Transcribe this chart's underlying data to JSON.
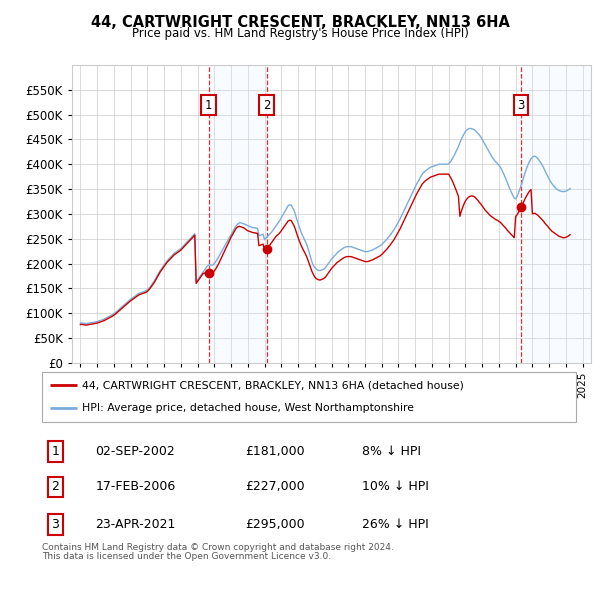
{
  "title": "44, CARTWRIGHT CRESCENT, BRACKLEY, NN13 6HA",
  "subtitle": "Price paid vs. HM Land Registry's House Price Index (HPI)",
  "legend_label_red": "44, CARTWRIGHT CRESCENT, BRACKLEY, NN13 6HA (detached house)",
  "legend_label_blue": "HPI: Average price, detached house, West Northamptonshire",
  "footer1": "Contains HM Land Registry data © Crown copyright and database right 2024.",
  "footer2": "This data is licensed under the Open Government Licence v3.0.",
  "transactions": [
    {
      "num": 1,
      "date": "02-SEP-2002",
      "price": "£181,000",
      "pct": "8% ↓ HPI",
      "x_year": 2002.67
    },
    {
      "num": 2,
      "date": "17-FEB-2006",
      "price": "£227,000",
      "pct": "10% ↓ HPI",
      "x_year": 2006.12
    },
    {
      "num": 3,
      "date": "23-APR-2021",
      "price": "£295,000",
      "pct": "26% ↓ HPI",
      "x_year": 2021.31
    }
  ],
  "red_color": "#cc0000",
  "blue_color": "#7aaddc",
  "shading_color": "#ddeeff",
  "grid_color": "#cccccc",
  "background_chart": "#ffffff",
  "ylim": [
    0,
    600000
  ],
  "yticks": [
    0,
    50000,
    100000,
    150000,
    200000,
    250000,
    300000,
    350000,
    400000,
    450000,
    500000,
    550000
  ],
  "xmin": 1994.5,
  "xmax": 2025.5,
  "years": [
    1995.0,
    1995.083,
    1995.167,
    1995.25,
    1995.333,
    1995.417,
    1995.5,
    1995.583,
    1995.667,
    1995.75,
    1995.833,
    1995.917,
    1996.0,
    1996.083,
    1996.167,
    1996.25,
    1996.333,
    1996.417,
    1996.5,
    1996.583,
    1996.667,
    1996.75,
    1996.833,
    1996.917,
    1997.0,
    1997.083,
    1997.167,
    1997.25,
    1997.333,
    1997.417,
    1997.5,
    1997.583,
    1997.667,
    1997.75,
    1997.833,
    1997.917,
    1998.0,
    1998.083,
    1998.167,
    1998.25,
    1998.333,
    1998.417,
    1998.5,
    1998.583,
    1998.667,
    1998.75,
    1998.833,
    1998.917,
    1999.0,
    1999.083,
    1999.167,
    1999.25,
    1999.333,
    1999.417,
    1999.5,
    1999.583,
    1999.667,
    1999.75,
    1999.833,
    1999.917,
    2000.0,
    2000.083,
    2000.167,
    2000.25,
    2000.333,
    2000.417,
    2000.5,
    2000.583,
    2000.667,
    2000.75,
    2000.833,
    2000.917,
    2001.0,
    2001.083,
    2001.167,
    2001.25,
    2001.333,
    2001.417,
    2001.5,
    2001.583,
    2001.667,
    2001.75,
    2001.833,
    2001.917,
    2002.0,
    2002.083,
    2002.167,
    2002.25,
    2002.333,
    2002.417,
    2002.5,
    2002.583,
    2002.667,
    2002.75,
    2002.833,
    2002.917,
    2003.0,
    2003.083,
    2003.167,
    2003.25,
    2003.333,
    2003.417,
    2003.5,
    2003.583,
    2003.667,
    2003.75,
    2003.833,
    2003.917,
    2004.0,
    2004.083,
    2004.167,
    2004.25,
    2004.333,
    2004.417,
    2004.5,
    2004.583,
    2004.667,
    2004.75,
    2004.833,
    2004.917,
    2005.0,
    2005.083,
    2005.167,
    2005.25,
    2005.333,
    2005.417,
    2005.5,
    2005.583,
    2005.667,
    2005.75,
    2005.833,
    2005.917,
    2006.0,
    2006.083,
    2006.167,
    2006.25,
    2006.333,
    2006.417,
    2006.5,
    2006.583,
    2006.667,
    2006.75,
    2006.833,
    2006.917,
    2007.0,
    2007.083,
    2007.167,
    2007.25,
    2007.333,
    2007.417,
    2007.5,
    2007.583,
    2007.667,
    2007.75,
    2007.833,
    2007.917,
    2008.0,
    2008.083,
    2008.167,
    2008.25,
    2008.333,
    2008.417,
    2008.5,
    2008.583,
    2008.667,
    2008.75,
    2008.833,
    2008.917,
    2009.0,
    2009.083,
    2009.167,
    2009.25,
    2009.333,
    2009.417,
    2009.5,
    2009.583,
    2009.667,
    2009.75,
    2009.833,
    2009.917,
    2010.0,
    2010.083,
    2010.167,
    2010.25,
    2010.333,
    2010.417,
    2010.5,
    2010.583,
    2010.667,
    2010.75,
    2010.833,
    2010.917,
    2011.0,
    2011.083,
    2011.167,
    2011.25,
    2011.333,
    2011.417,
    2011.5,
    2011.583,
    2011.667,
    2011.75,
    2011.833,
    2011.917,
    2012.0,
    2012.083,
    2012.167,
    2012.25,
    2012.333,
    2012.417,
    2012.5,
    2012.583,
    2012.667,
    2012.75,
    2012.833,
    2012.917,
    2013.0,
    2013.083,
    2013.167,
    2013.25,
    2013.333,
    2013.417,
    2013.5,
    2013.583,
    2013.667,
    2013.75,
    2013.833,
    2013.917,
    2014.0,
    2014.083,
    2014.167,
    2014.25,
    2014.333,
    2014.417,
    2014.5,
    2014.583,
    2014.667,
    2014.75,
    2014.833,
    2014.917,
    2015.0,
    2015.083,
    2015.167,
    2015.25,
    2015.333,
    2015.417,
    2015.5,
    2015.583,
    2015.667,
    2015.75,
    2015.833,
    2015.917,
    2016.0,
    2016.083,
    2016.167,
    2016.25,
    2016.333,
    2016.417,
    2016.5,
    2016.583,
    2016.667,
    2016.75,
    2016.833,
    2016.917,
    2017.0,
    2017.083,
    2017.167,
    2017.25,
    2017.333,
    2017.417,
    2017.5,
    2017.583,
    2017.667,
    2017.75,
    2017.833,
    2017.917,
    2018.0,
    2018.083,
    2018.167,
    2018.25,
    2018.333,
    2018.417,
    2018.5,
    2018.583,
    2018.667,
    2018.75,
    2018.833,
    2018.917,
    2019.0,
    2019.083,
    2019.167,
    2019.25,
    2019.333,
    2019.417,
    2019.5,
    2019.583,
    2019.667,
    2019.75,
    2019.833,
    2019.917,
    2020.0,
    2020.083,
    2020.167,
    2020.25,
    2020.333,
    2020.417,
    2020.5,
    2020.583,
    2020.667,
    2020.75,
    2020.833,
    2020.917,
    2021.0,
    2021.083,
    2021.167,
    2021.25,
    2021.333,
    2021.417,
    2021.5,
    2021.583,
    2021.667,
    2021.75,
    2021.833,
    2021.917,
    2022.0,
    2022.083,
    2022.167,
    2022.25,
    2022.333,
    2022.417,
    2022.5,
    2022.583,
    2022.667,
    2022.75,
    2022.833,
    2022.917,
    2023.0,
    2023.083,
    2023.167,
    2023.25,
    2023.333,
    2023.417,
    2023.5,
    2023.583,
    2023.667,
    2023.75,
    2023.833,
    2023.917,
    2024.0,
    2024.083,
    2024.167,
    2024.25
  ],
  "hpi_values": [
    80000,
    80500,
    80000,
    79500,
    79000,
    79500,
    80000,
    80500,
    81000,
    81500,
    82000,
    82500,
    83000,
    84000,
    85000,
    86000,
    87000,
    88000,
    89500,
    91000,
    92500,
    94000,
    95500,
    97000,
    99000,
    101000,
    103500,
    106000,
    108500,
    111000,
    113500,
    116000,
    118500,
    121000,
    123500,
    126000,
    128000,
    130000,
    132000,
    134000,
    136000,
    138000,
    140000,
    141000,
    142000,
    143000,
    144000,
    145000,
    147000,
    150000,
    153000,
    157000,
    161000,
    165000,
    170000,
    175000,
    180000,
    185000,
    189000,
    193000,
    197000,
    201000,
    205000,
    208000,
    211000,
    214000,
    217000,
    220000,
    222000,
    224000,
    226000,
    228000,
    230000,
    233000,
    236000,
    239000,
    242000,
    245000,
    248000,
    251000,
    254000,
    257000,
    260000,
    163000,
    167000,
    171000,
    175000,
    179000,
    183000,
    187000,
    191000,
    195000,
    197000,
    197000,
    197000,
    197000,
    200000,
    204000,
    208000,
    213000,
    218000,
    223000,
    228000,
    233000,
    238000,
    243000,
    248000,
    253000,
    258000,
    263000,
    268000,
    273000,
    277000,
    280000,
    282000,
    282000,
    281000,
    280000,
    279000,
    278000,
    276000,
    275000,
    274000,
    273000,
    272000,
    272000,
    271000,
    271000,
    256000,
    257000,
    258000,
    259000,
    248000,
    251000,
    254000,
    257000,
    260000,
    263000,
    267000,
    271000,
    275000,
    279000,
    283000,
    287000,
    292000,
    297000,
    302000,
    307000,
    312000,
    317000,
    318000,
    318000,
    313000,
    308000,
    300000,
    290000,
    282000,
    273000,
    265000,
    258000,
    252000,
    246000,
    240000,
    232000,
    222000,
    212000,
    203000,
    196000,
    192000,
    189000,
    187000,
    186000,
    186000,
    187000,
    188000,
    190000,
    193000,
    197000,
    201000,
    205000,
    209000,
    212000,
    215000,
    218000,
    221000,
    224000,
    226000,
    228000,
    230000,
    232000,
    233000,
    234000,
    234000,
    234000,
    234000,
    233000,
    232000,
    231000,
    230000,
    229000,
    228000,
    227000,
    226000,
    225000,
    224000,
    224000,
    224000,
    225000,
    226000,
    227000,
    228000,
    230000,
    231000,
    233000,
    234000,
    236000,
    238000,
    241000,
    244000,
    247000,
    250000,
    254000,
    257000,
    261000,
    265000,
    269000,
    274000,
    279000,
    284000,
    289000,
    295000,
    301000,
    307000,
    313000,
    319000,
    325000,
    331000,
    337000,
    343000,
    349000,
    355000,
    360000,
    365000,
    370000,
    375000,
    380000,
    383000,
    386000,
    388000,
    390000,
    392000,
    394000,
    395000,
    396000,
    397000,
    398000,
    399000,
    400000,
    400000,
    400000,
    400000,
    400000,
    400000,
    400000,
    401000,
    404000,
    408000,
    413000,
    418000,
    424000,
    430000,
    436000,
    443000,
    450000,
    456000,
    461000,
    466000,
    469000,
    471000,
    472000,
    472000,
    471000,
    470000,
    468000,
    465000,
    462000,
    459000,
    455000,
    450000,
    445000,
    440000,
    435000,
    430000,
    425000,
    420000,
    415000,
    411000,
    407000,
    404000,
    401000,
    398000,
    394000,
    389000,
    383000,
    377000,
    370000,
    363000,
    356000,
    349000,
    343000,
    337000,
    332000,
    330000,
    335000,
    342000,
    350000,
    358000,
    367000,
    376000,
    385000,
    393000,
    400000,
    406000,
    411000,
    414000,
    416000,
    416000,
    414000,
    411000,
    407000,
    403000,
    398000,
    393000,
    387000,
    381000,
    376000,
    370000,
    365000,
    361000,
    357000,
    354000,
    351000,
    349000,
    347000,
    346000,
    345000,
    345000,
    345000,
    346000,
    347000,
    349000,
    351000
  ],
  "red_values": [
    77000,
    77500,
    77000,
    76500,
    76000,
    76500,
    77000,
    77500,
    78000,
    78500,
    79000,
    79500,
    80000,
    81000,
    82000,
    83000,
    84000,
    85000,
    86500,
    88000,
    89500,
    91000,
    92500,
    94000,
    96000,
    98000,
    100500,
    103000,
    105500,
    108000,
    110500,
    113000,
    115500,
    118000,
    120500,
    123000,
    125000,
    127000,
    129000,
    131000,
    133000,
    135000,
    137000,
    138000,
    139000,
    140000,
    141000,
    142000,
    144000,
    147000,
    150000,
    154000,
    158000,
    162000,
    167000,
    172000,
    177000,
    182000,
    186000,
    190000,
    194000,
    198000,
    202000,
    205000,
    208000,
    211000,
    214000,
    217000,
    219000,
    221000,
    223000,
    225000,
    227000,
    230000,
    233000,
    236000,
    239000,
    242000,
    245000,
    248000,
    251000,
    254000,
    257000,
    160000,
    164000,
    168000,
    172000,
    176000,
    180000,
    181000,
    181000,
    181000,
    181000,
    181000,
    181000,
    181000,
    185000,
    189000,
    194000,
    199000,
    205000,
    211000,
    217000,
    223000,
    229000,
    235000,
    241000,
    247000,
    253000,
    258000,
    263000,
    268000,
    272000,
    274000,
    275000,
    274000,
    273000,
    272000,
    270000,
    268000,
    266000,
    265000,
    264000,
    263000,
    262000,
    262000,
    261000,
    261000,
    236000,
    237000,
    238000,
    239000,
    227000,
    229000,
    232000,
    235000,
    238000,
    242000,
    246000,
    250000,
    254000,
    257000,
    259000,
    262000,
    266000,
    270000,
    274000,
    278000,
    282000,
    286000,
    287000,
    287000,
    282000,
    277000,
    270000,
    261000,
    253000,
    245000,
    238000,
    232000,
    226000,
    221000,
    215000,
    208000,
    200000,
    192000,
    184000,
    178000,
    173000,
    170000,
    168000,
    167000,
    167000,
    168000,
    169000,
    171000,
    174000,
    178000,
    182000,
    186000,
    190000,
    193000,
    196000,
    199000,
    202000,
    204000,
    206000,
    208000,
    210000,
    212000,
    213000,
    214000,
    214000,
    214000,
    214000,
    213000,
    212000,
    211000,
    210000,
    209000,
    208000,
    207000,
    206000,
    205000,
    204000,
    204000,
    204000,
    205000,
    206000,
    207000,
    208000,
    210000,
    211000,
    213000,
    214000,
    216000,
    218000,
    221000,
    224000,
    227000,
    230000,
    234000,
    237000,
    241000,
    245000,
    249000,
    254000,
    259000,
    264000,
    269000,
    275000,
    281000,
    287000,
    293000,
    299000,
    305000,
    311000,
    317000,
    323000,
    329000,
    335000,
    340000,
    345000,
    350000,
    355000,
    360000,
    363000,
    366000,
    368000,
    370000,
    372000,
    374000,
    375000,
    376000,
    377000,
    378000,
    379000,
    380000,
    380000,
    380000,
    380000,
    380000,
    380000,
    380000,
    380000,
    375000,
    370000,
    364000,
    357000,
    350000,
    343000,
    335000,
    295000,
    305000,
    313000,
    320000,
    326000,
    330000,
    333000,
    335000,
    336000,
    336000,
    335000,
    333000,
    330000,
    327000,
    323000,
    320000,
    316000,
    312000,
    308000,
    305000,
    302000,
    299000,
    296000,
    294000,
    292000,
    290000,
    288000,
    287000,
    285000,
    283000,
    280000,
    277000,
    274000,
    271000,
    267000,
    264000,
    261000,
    258000,
    255000,
    252000,
    295000,
    298000,
    303000,
    308000,
    314000,
    320000,
    326000,
    332000,
    337000,
    342000,
    346000,
    349000,
    300000,
    301000,
    301000,
    299000,
    297000,
    294000,
    291000,
    288000,
    285000,
    281000,
    278000,
    275000,
    271000,
    268000,
    265000,
    263000,
    261000,
    259000,
    257000,
    255000,
    254000,
    253000,
    252000,
    252000,
    253000,
    254000,
    256000,
    258000
  ]
}
